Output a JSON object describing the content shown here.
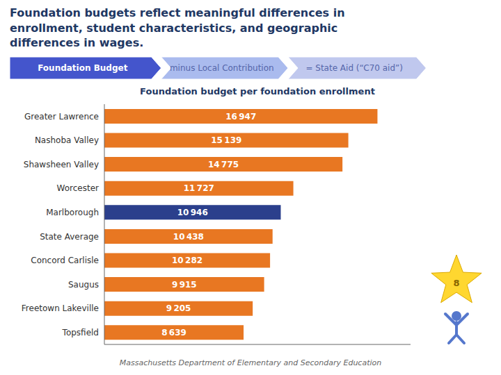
{
  "chart_data": {
    "type": "bar",
    "orientation": "horizontal",
    "title": "Foundation budgets reflect meaningful differences in\nenrollment, student characteristics, and geographic\ndifferences in wages.",
    "subtitle": "Foundation budget per foundation enrollment",
    "annotations": [
      "Foundation Budget",
      "minus Local Contribution",
      "= State Aid (“C70 aid”)",
      "Massachusetts Department of Elementary and Secondary Education",
      "8"
    ],
    "categories": [
      "Greater Lawrence",
      "Nashoba Valley",
      "Shawsheen Valley",
      "Worcester",
      "Marlborough",
      "State Average",
      "Concord Carlisle",
      "Saugus",
      "Freetown Lakeville",
      "Topsfield"
    ],
    "values": [
      16947,
      15139,
      14775,
      11727,
      10946,
      10438,
      10282,
      9915,
      9205,
      8639
    ],
    "value_labels": [
      "16 947",
      "15 139",
      "14 775",
      "11 727",
      "10 946",
      "10 438",
      "10 282",
      "9 915",
      "9 205",
      "8 639"
    ],
    "data_labels": true,
    "colors": [
      "#E87722",
      "#E87722",
      "#E87722",
      "#E87722",
      "#2B3F8C",
      "#E87722",
      "#E87722",
      "#E87722",
      "#E87722",
      "#E87722"
    ],
    "xlim": [
      0,
      19000
    ],
    "tick_labels": "y"
  }
}
